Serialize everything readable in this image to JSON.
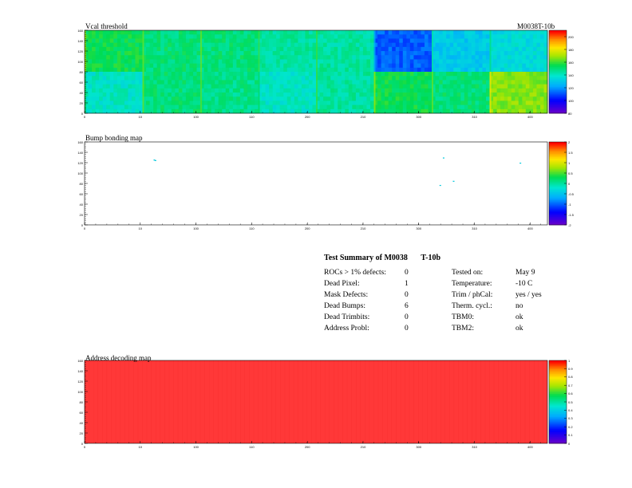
{
  "header": {
    "module_label": "M0038T-10b"
  },
  "chart_data": [
    {
      "type": "heatmap",
      "title": "Vcal threshold",
      "x_ticks": [
        "0",
        "10",
        "100",
        "110",
        "200",
        "210",
        "300",
        "310",
        "400"
      ],
      "y_ticks": [
        "0",
        "20",
        "40",
        "60",
        "80",
        "100",
        "120",
        "140",
        "160"
      ],
      "xlim": [
        0,
        416
      ],
      "ylim": [
        0,
        160
      ],
      "zlim": [
        80,
        210
      ],
      "colorbar_ticks": [
        "80",
        "100",
        "120",
        "140",
        "160",
        "180",
        "200"
      ],
      "roc_means": [
        [
          155,
          150,
          150,
          145,
          145,
          112,
          130,
          135
        ],
        [
          140,
          150,
          148,
          140,
          145,
          155,
          150,
          168
        ]
      ]
    },
    {
      "type": "heatmap",
      "title": "Bump bonding map",
      "x_ticks": [
        "0",
        "10",
        "100",
        "110",
        "200",
        "210",
        "300",
        "310",
        "400"
      ],
      "y_ticks": [
        "0",
        "20",
        "40",
        "60",
        "80",
        "100",
        "120",
        "140",
        "160"
      ],
      "xlim": [
        0,
        416
      ],
      "ylim": [
        0,
        160
      ],
      "zlim": [
        -2,
        2
      ],
      "colorbar_ticks": [
        "-2",
        "-1.5",
        "-1",
        "-0.5",
        "0",
        "0.5",
        "1",
        "1.5",
        "2"
      ],
      "points": [
        [
          62,
          126
        ],
        [
          63,
          125
        ],
        [
          322,
          130
        ],
        [
          331,
          85
        ],
        [
          319,
          77
        ],
        [
          391,
          120
        ]
      ]
    },
    {
      "type": "heatmap",
      "title": "Address decoding map",
      "x_ticks": [
        "0",
        "10",
        "100",
        "110",
        "200",
        "210",
        "300",
        "310",
        "400"
      ],
      "y_ticks": [
        "0",
        "20",
        "40",
        "60",
        "80",
        "100",
        "120",
        "140",
        "160"
      ],
      "xlim": [
        0,
        416
      ],
      "ylim": [
        0,
        160
      ],
      "zlim": [
        0,
        1
      ],
      "fill_value": 1,
      "colorbar_ticks": [
        "0",
        "0.1",
        "0.2",
        "0.3",
        "0.4",
        "0.5",
        "0.6",
        "0.7",
        "0.8",
        "0.9",
        "1"
      ]
    }
  ],
  "summary": {
    "title": "Test Summary of M0038",
    "title_suffix": "T-10b",
    "left": [
      {
        "label": "ROCs > 1% defects:",
        "value": "0"
      },
      {
        "label": "Dead Pixel:",
        "value": "1"
      },
      {
        "label": "Mask Defects:",
        "value": "0"
      },
      {
        "label": "Dead Bumps:",
        "value": "6"
      },
      {
        "label": "Dead Trimbits:",
        "value": "0"
      },
      {
        "label": "Address Probl:",
        "value": "0"
      }
    ],
    "right": [
      {
        "label": "Tested on:",
        "value": "May 9"
      },
      {
        "label": "Temperature:",
        "value": "-10 C"
      },
      {
        "label": "Trim / phCal:",
        "value": "yes / yes"
      },
      {
        "label": "Therm. cycl.:",
        "value": "no"
      },
      {
        "label": "TBM0:",
        "value": "ok"
      },
      {
        "label": "TBM2:",
        "value": "ok"
      }
    ]
  }
}
